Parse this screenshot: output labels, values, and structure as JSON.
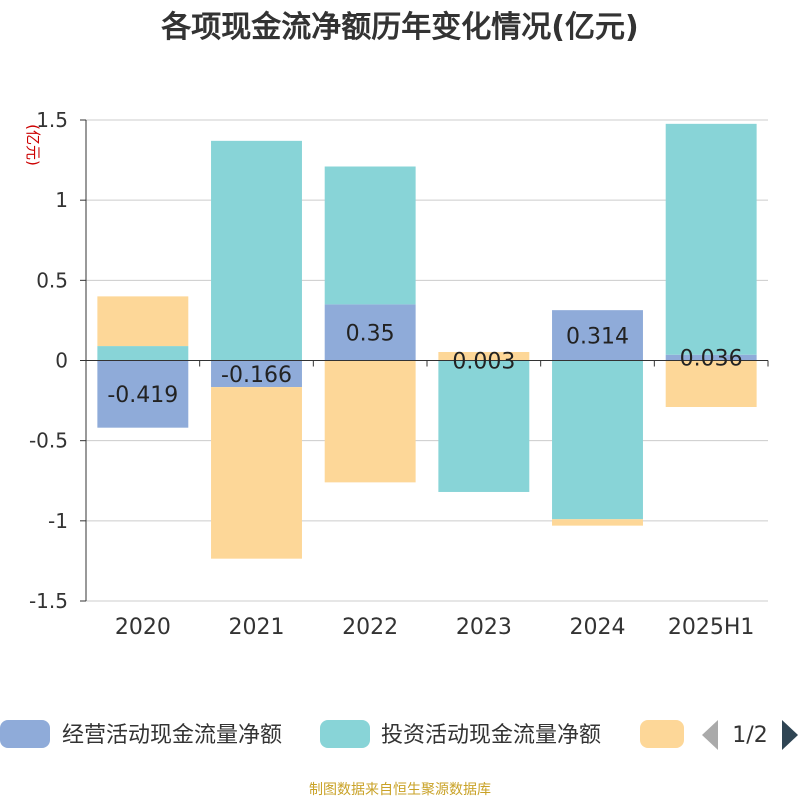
{
  "chart_data": {
    "type": "bar",
    "stacked": true,
    "title": "各项现金流净额历年变化情况(亿元)",
    "ylabel": "(亿元)",
    "ylim": [
      -1.5,
      1.5
    ],
    "yticks": [
      "1.5",
      "1",
      "0.5",
      "0",
      "-0.5",
      "-1",
      "-1.5"
    ],
    "ytick_values": [
      1.5,
      1,
      0.5,
      0,
      -0.5,
      -1,
      -1.5
    ],
    "grid": true,
    "legend_position": "bottom",
    "categories": [
      "2020",
      "2021",
      "2022",
      "2023",
      "2024",
      "2025H1"
    ],
    "series": [
      {
        "name": "经营活动现金流量净额",
        "color": "#8fabd9",
        "values": [
          -0.419,
          -0.166,
          0.35,
          0.003,
          0.314,
          0.036
        ],
        "labels": [
          "-0.419",
          "-0.166",
          "0.35",
          "0.003",
          "0.314",
          "0.036"
        ]
      },
      {
        "name": "投资活动现金流量净额",
        "color": "#88d4d7",
        "values": [
          0.09,
          1.37,
          0.86,
          -0.82,
          -0.99,
          1.44
        ]
      },
      {
        "name": "",
        "color": "#fdd798",
        "values": [
          0.31,
          -1.07,
          -0.76,
          0.05,
          -0.04,
          -0.29
        ]
      }
    ],
    "legend_page": "1/2"
  },
  "footer": "制图数据来自恒生聚源数据库"
}
